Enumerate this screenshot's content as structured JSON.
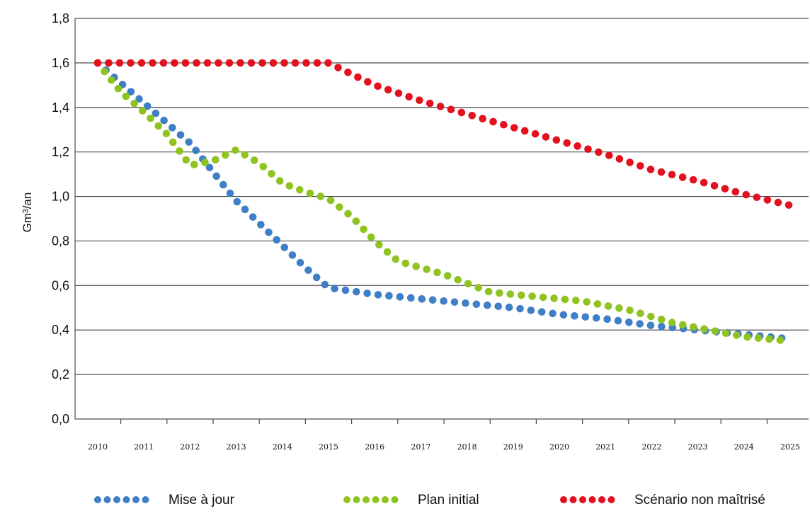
{
  "chart_data": {
    "type": "line",
    "title": "",
    "ylabel": "Gm³/an",
    "xlabel": "",
    "ylim": [
      0,
      1.8
    ],
    "xlim": [
      2010,
      2025
    ],
    "yticks": [
      "0,0",
      "0,2",
      "0,4",
      "0,6",
      "0,8",
      "1,0",
      "1,2",
      "1,4",
      "1,6",
      "1,8"
    ],
    "xticks": [
      "2010",
      "2011",
      "2012",
      "2013",
      "2014",
      "2015",
      "2016",
      "2017",
      "2018",
      "2019",
      "2020",
      "2021",
      "2022",
      "2023",
      "2024",
      "2025"
    ],
    "grid": "horizontal",
    "legend_position": "bottom",
    "series": [
      {
        "name": "Mise à jour",
        "color": "#3f7fc6",
        "x": [
          2010,
          2011,
          2012,
          2013,
          2014,
          2014.5,
          2015,
          2016,
          2017,
          2018,
          2019,
          2020,
          2021,
          2022,
          2023,
          2024,
          2025
        ],
        "y": [
          1.6,
          1.42,
          1.24,
          0.98,
          0.78,
          0.68,
          0.59,
          0.56,
          0.54,
          0.52,
          0.5,
          0.47,
          0.45,
          0.42,
          0.4,
          0.38,
          0.36
        ]
      },
      {
        "name": "Plan initial",
        "color": "#8fc31f",
        "x": [
          2010,
          2010.5,
          2011,
          2011.5,
          2012,
          2012.5,
          2013,
          2013.5,
          2014,
          2014.5,
          2015,
          2015.5,
          2016,
          2016.5,
          2017,
          2017.5,
          2018,
          2018.5,
          2019,
          2019.5,
          2020,
          2020.5,
          2021,
          2021.5,
          2022,
          2022.5,
          2023,
          2023.5,
          2024,
          2024.5,
          2025
        ],
        "y": [
          1.6,
          1.47,
          1.38,
          1.28,
          1.14,
          1.16,
          1.21,
          1.15,
          1.06,
          1.02,
          0.99,
          0.91,
          0.8,
          0.71,
          0.68,
          0.65,
          0.61,
          0.57,
          0.56,
          0.55,
          0.54,
          0.53,
          0.51,
          0.49,
          0.46,
          0.43,
          0.41,
          0.39,
          0.37,
          0.36,
          0.35
        ]
      },
      {
        "name": "Scénario non maîtrisé",
        "color": "#e3101d",
        "x": [
          2010,
          2011,
          2012,
          2013,
          2014,
          2015,
          2016,
          2017,
          2018,
          2019,
          2020,
          2021,
          2022,
          2023,
          2024,
          2025
        ],
        "y": [
          1.6,
          1.6,
          1.6,
          1.6,
          1.6,
          1.6,
          1.5,
          1.43,
          1.37,
          1.31,
          1.25,
          1.19,
          1.12,
          1.07,
          1.01,
          0.96
        ]
      }
    ]
  }
}
